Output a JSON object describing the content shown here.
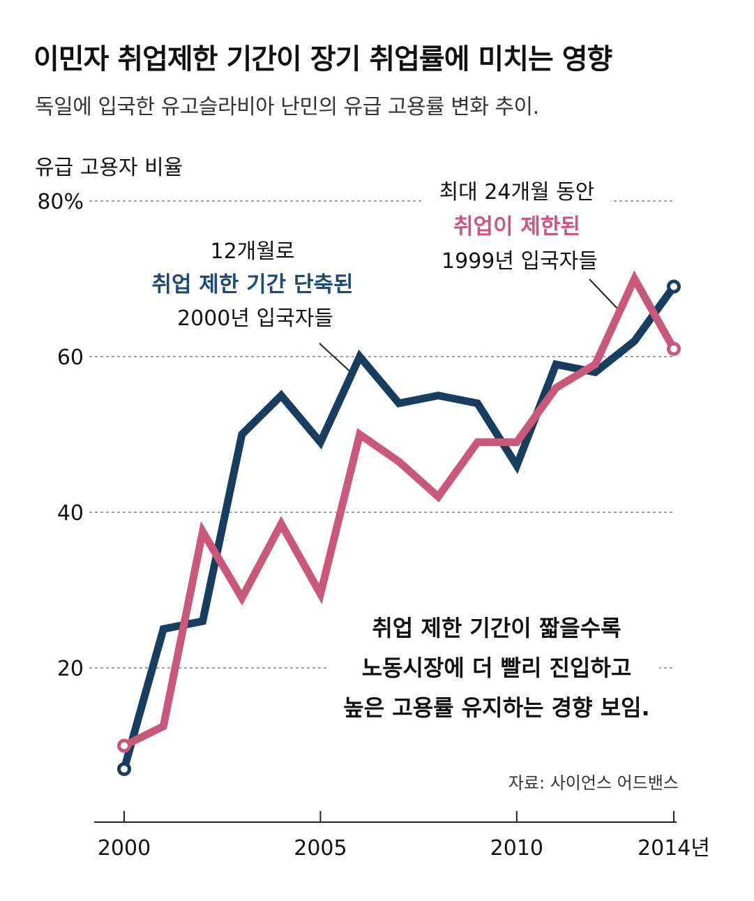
{
  "header": {
    "title": "이민자 취업제한 기간이 장기 취업률에 미치는 영향",
    "subtitle": "독일에 입국한 유고슬라비아 난민의 유급 고용률 변화 추이."
  },
  "colors": {
    "series_2000": "#173e5e",
    "series_1999": "#c9587a",
    "gridline": "#666666",
    "text": "#111111"
  },
  "chart_data": {
    "type": "line",
    "ylabel": "유급 고용자 비율",
    "ylim": [
      0,
      80
    ],
    "yticks": [
      {
        "value": 80,
        "label": "80%"
      },
      {
        "value": 60,
        "label": "60"
      },
      {
        "value": 40,
        "label": "40"
      },
      {
        "value": 20,
        "label": "20"
      }
    ],
    "xlim": [
      2000,
      2014
    ],
    "xticks": [
      {
        "value": 2000,
        "label": "2000"
      },
      {
        "value": 2005,
        "label": "2005"
      },
      {
        "value": 2010,
        "label": "2010"
      },
      {
        "value": 2014,
        "label": "2014년"
      }
    ],
    "x": [
      2000,
      2001,
      2002,
      2003,
      2004,
      2005,
      2006,
      2007,
      2008,
      2009,
      2010,
      2011,
      2012,
      2013,
      2014
    ],
    "series": [
      {
        "name": "2000년 입국자들",
        "color": "#173e5e",
        "values": [
          7,
          25,
          26,
          50,
          55,
          49,
          60,
          54,
          55,
          54,
          46,
          59,
          58,
          62,
          69
        ]
      },
      {
        "name": "1999년 입국자들",
        "color": "#c9587a",
        "values": [
          10,
          12.5,
          37.5,
          29,
          38.5,
          29.5,
          50,
          46.5,
          42,
          49,
          49,
          56,
          59,
          70,
          61
        ]
      }
    ],
    "annotations": {
      "series_2000": {
        "line1": "12개월로",
        "line2": "취업 제한 기간 단축된",
        "line3": "2000년 입국자들"
      },
      "series_1999": {
        "line1": "최대 24개월 동안",
        "line2": "취업이 제한된",
        "line3": "1999년 입국자들"
      },
      "note": {
        "line1": "취업 제한 기간이 짧을수록",
        "line2": "노동시장에 더 빨리 진입하고",
        "line3": "높은 고용률 유지하는 경향 보임."
      }
    },
    "source": "자료: 사이언스 어드밴스"
  }
}
